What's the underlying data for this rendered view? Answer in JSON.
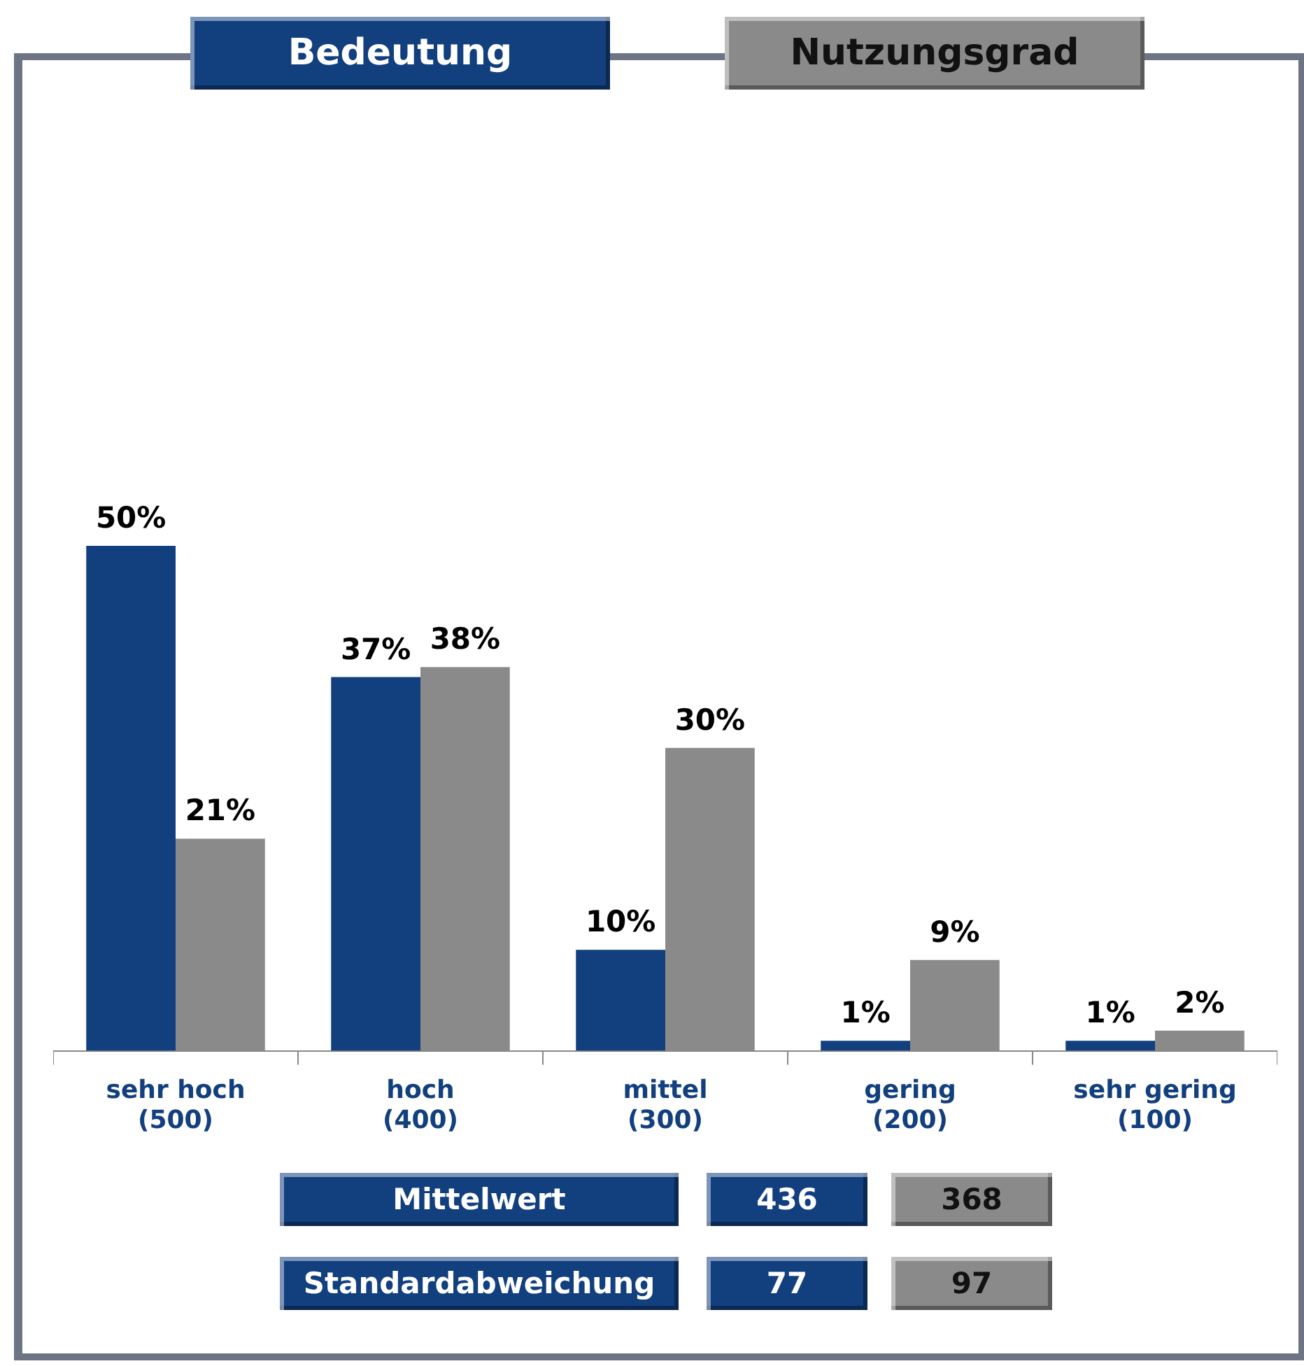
{
  "chart_data": {
    "type": "bar",
    "categories": [
      "sehr hoch\n(500)",
      "hoch\n(400)",
      "mittel\n(300)",
      "gering\n(200)",
      "sehr gering\n(100)"
    ],
    "series": [
      {
        "name": "Bedeutung",
        "color": "#123f7e",
        "values": [
          50,
          37,
          10,
          1,
          1
        ],
        "value_labels": [
          "50%",
          "37%",
          "10%",
          "1%",
          "1%"
        ]
      },
      {
        "name": "Nutzungsgrad",
        "color": "#8a8a8a",
        "values": [
          21,
          38,
          30,
          9,
          2
        ],
        "value_labels": [
          "21%",
          "38%",
          "30%",
          "9%",
          "2%"
        ]
      }
    ],
    "legend": "top",
    "annotations": [
      "Mittelwert",
      "436",
      "368",
      "Standardabweichung",
      "77",
      "97"
    ]
  }
}
